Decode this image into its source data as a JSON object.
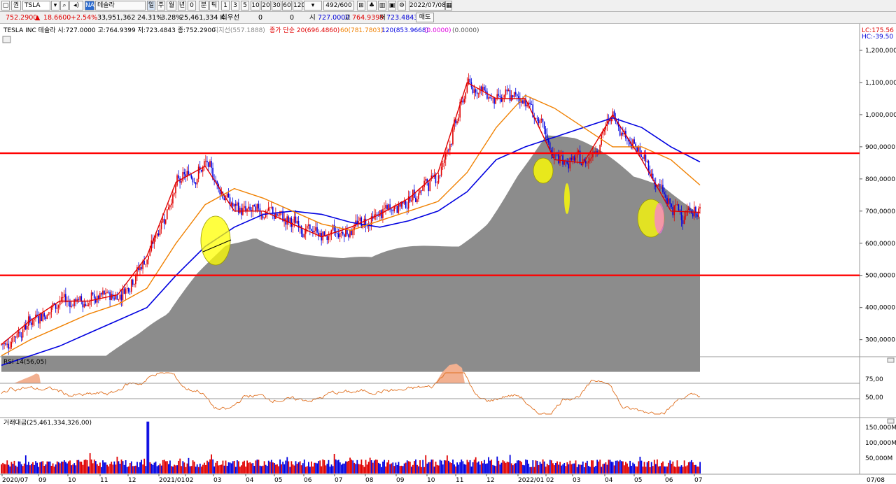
{
  "toolbar": {
    "market_label": "권",
    "symbol": "TSLA",
    "na_badge": "NA",
    "stock_name": "테슬라",
    "periods": [
      "일",
      "주",
      "월",
      "년",
      "0",
      "분",
      "틱"
    ],
    "minute_steps": [
      "1",
      "3",
      "5",
      "10",
      "20",
      "30",
      "60",
      "120"
    ],
    "counter": "492/600",
    "date": "2022/07/08",
    "trade_button": "매도"
  },
  "quote": {
    "price": "752.2900",
    "change": "18.6600",
    "change_pct": "+2.54%",
    "volume": "33,951,362",
    "volume_ratio": "24.31%",
    "turnover_rate": "3.28%",
    "trade_value": "25,461,334 K",
    "pref_label": "최우선",
    "pref_bid": "0",
    "pref_ask": "0",
    "open_label": "시",
    "open": "727.0000",
    "high_label": "고",
    "high": "764.9399",
    "low_label": "저",
    "low": "723.4843"
  },
  "price_panel": {
    "legend_name": "TESLA INC  테슬라 시:727.0000 고:764.9399 저:723.4843 종:752.2900",
    "support_label": "지지선(557.1888)",
    "ma_prefix": "종가 단순 20(696.4860)",
    "ma60": "60(781.7803)",
    "ma120": "120(853.9668)",
    "ma_extra": "(0.0000)",
    "ma_extra2": "(0.0000)",
    "lc": "LC:175.56",
    "hc": "HC:-39.50",
    "colors": {
      "ma20": "#e00000",
      "ma60": "#f08000",
      "ma120": "#0000e0",
      "hline": "#ff0000",
      "support_area": "#8c8c8c",
      "rise": "#e00000",
      "fall": "#0000e0",
      "ellipse": "#ffff00"
    }
  },
  "rsi_panel": {
    "legend": "RSI 14(56,05)",
    "levels": [
      "75,00",
      "50,00"
    ]
  },
  "volume_panel": {
    "legend": "거래대금(25,461,334,326,00)",
    "levels": [
      "150,000M",
      "100,000M",
      "50,000M"
    ]
  },
  "x_labels": [
    "2020/07",
    "09",
    "10",
    "11",
    "12",
    "2021/01",
    "02",
    "03",
    "04",
    "05",
    "06",
    "07",
    "08",
    "09",
    "10",
    "11",
    "12",
    "2022/01",
    "02",
    "03",
    "04",
    "05",
    "06",
    "07"
  ],
  "x_right_label": "07/08",
  "chart_data": {
    "type": "line",
    "title": "TESLA INC 테슬라",
    "y_ticks": [
      300000,
      400000,
      500000,
      600000,
      700000,
      800000,
      900000,
      1000000,
      1100000,
      1200000
    ],
    "y_tick_labels": [
      "300,0000",
      "400,0000",
      "500,0000",
      "600,0000",
      "700,0000",
      "800,0000",
      "900,0000",
      "1,000,0000",
      "1,100,0000",
      "1,200,0000"
    ],
    "horizontal_lines": [
      880,
      500
    ],
    "series": [
      {
        "name": "20",
        "x": [
          "2020/07",
          "2020/08",
          "2020/09",
          "2020/10",
          "2020/11",
          "2020/12",
          "2021/01",
          "2021/02",
          "2021/03",
          "2021/04",
          "2021/05",
          "2021/06",
          "2021/07",
          "2021/08",
          "2021/09",
          "2021/10",
          "2021/11",
          "2021/12",
          "2022/01",
          "2022/02",
          "2022/03",
          "2022/04",
          "2022/05",
          "2022/06",
          "2022/07"
        ],
        "values": [
          285,
          360,
          420,
          420,
          440,
          560,
          790,
          840,
          700,
          700,
          660,
          620,
          650,
          690,
          740,
          820,
          1100,
          1050,
          1050,
          860,
          850,
          1000,
          860,
          700,
          696
        ]
      },
      {
        "name": "60",
        "x": [
          "2020/07",
          "2020/08",
          "2020/09",
          "2020/10",
          "2020/11",
          "2020/12",
          "2021/01",
          "2021/02",
          "2021/03",
          "2021/04",
          "2021/05",
          "2021/06",
          "2021/07",
          "2021/08",
          "2021/09",
          "2021/10",
          "2021/11",
          "2021/12",
          "2022/01",
          "2022/02",
          "2022/03",
          "2022/04",
          "2022/05",
          "2022/06",
          "2022/07"
        ],
        "values": [
          250,
          300,
          340,
          380,
          410,
          460,
          600,
          720,
          770,
          740,
          700,
          660,
          640,
          670,
          700,
          730,
          820,
          960,
          1060,
          1020,
          960,
          900,
          900,
          860,
          781
        ]
      },
      {
        "name": "120",
        "x": [
          "2020/07",
          "2020/08",
          "2020/09",
          "2020/10",
          "2020/11",
          "2020/12",
          "2021/01",
          "2021/02",
          "2021/03",
          "2021/04",
          "2021/05",
          "2021/06",
          "2021/07",
          "2021/08",
          "2021/09",
          "2021/10",
          "2021/11",
          "2021/12",
          "2022/01",
          "2022/02",
          "2022/03",
          "2022/04",
          "2022/05",
          "2022/06",
          "2022/07"
        ],
        "values": [
          220,
          250,
          280,
          320,
          360,
          400,
          500,
          590,
          650,
          690,
          700,
          690,
          665,
          650,
          670,
          700,
          760,
          860,
          900,
          930,
          960,
          990,
          960,
          900,
          853
        ]
      }
    ]
  }
}
